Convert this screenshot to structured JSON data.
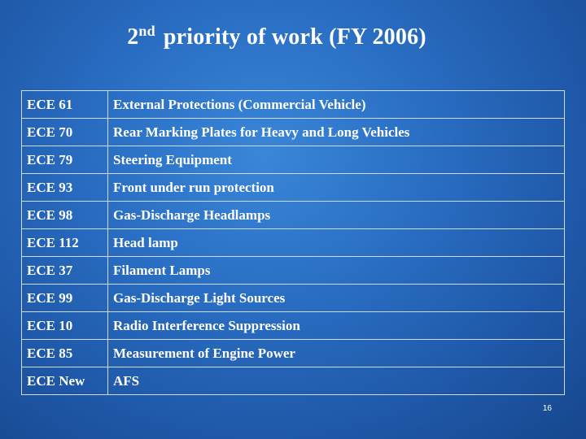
{
  "title": {
    "ordinal_number": "2",
    "ordinal_suffix": "nd",
    "rest": "priority of work (FY 2006)"
  },
  "table": {
    "rows": [
      {
        "code": "ECE 61",
        "description": "External Protections (Commercial Vehicle)"
      },
      {
        "code": "ECE 70",
        "description": "Rear Marking Plates for Heavy and Long Vehicles"
      },
      {
        "code": "ECE 79",
        "description": "Steering Equipment"
      },
      {
        "code": "ECE 93",
        "description": "Front under run protection"
      },
      {
        "code": "ECE 98",
        "description": "Gas-Discharge Headlamps"
      },
      {
        "code": "ECE 112",
        "description": "Head lamp"
      },
      {
        "code": "ECE 37",
        "description": "Filament Lamps"
      },
      {
        "code": "ECE 99",
        "description": "Gas-Discharge Light Sources"
      },
      {
        "code": "ECE 10",
        "description": "Radio Interference Suppression"
      },
      {
        "code": "ECE 85",
        "description": "Measurement of Engine Power"
      },
      {
        "code": "ECE New",
        "description": "AFS"
      }
    ]
  },
  "page_number": "16",
  "colors": {
    "background": "#2a6fc4",
    "text": "#ffffff",
    "table_border": "#cfdcef"
  }
}
